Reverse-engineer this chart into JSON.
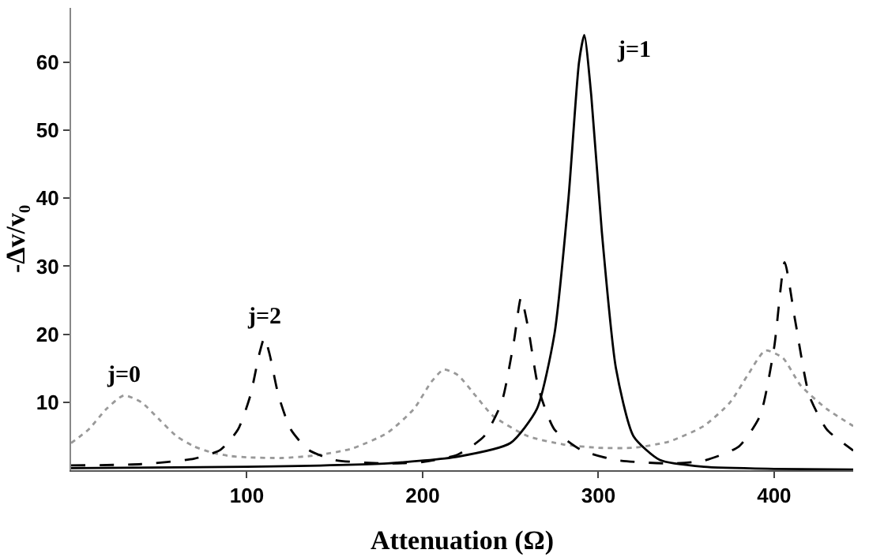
{
  "chart_data": {
    "type": "line",
    "xlabel": "Attenuation (Ω)",
    "ylabel": "-Δv/v₀",
    "xlim": [
      0,
      445
    ],
    "xticks": [
      100,
      200,
      300,
      400
    ],
    "ylim": [
      0,
      68
    ],
    "yticks": [
      10,
      20,
      30,
      40,
      50,
      60
    ],
    "legend": false,
    "marker": "none",
    "series": [
      {
        "name": "j=0",
        "color": "#999999",
        "line_style": "dotted",
        "x": [
          0,
          10,
          20,
          30,
          40,
          50,
          60,
          70,
          80,
          90,
          100,
          120,
          140,
          160,
          180,
          195,
          205,
          212,
          220,
          230,
          240,
          260,
          280,
          300,
          320,
          340,
          360,
          375,
          385,
          395,
          405,
          415,
          430,
          445
        ],
        "values": [
          4,
          6,
          9,
          11,
          10,
          7.5,
          5,
          3.5,
          2.6,
          2.1,
          1.9,
          1.8,
          2.2,
          3.2,
          5.5,
          9,
          13,
          14.8,
          14,
          11,
          8,
          5,
          3.8,
          3.3,
          3.3,
          4.2,
          6.5,
          10,
          14,
          17.6,
          16.5,
          12.5,
          9,
          6.5
        ]
      },
      {
        "name": "j=1",
        "color": "#000000",
        "line_style": "solid",
        "x": [
          0,
          100,
          180,
          220,
          250,
          265,
          275,
          283,
          289,
          292,
          296,
          302,
          310,
          320,
          335,
          360,
          400,
          445
        ],
        "values": [
          0.3,
          0.5,
          1,
          2,
          4,
          9,
          20,
          40,
          60,
          64,
          55,
          35,
          15,
          5,
          1.5,
          0.5,
          0.2,
          0.1
        ]
      },
      {
        "name": "j=2",
        "color": "#000000",
        "line_style": "dashed",
        "x": [
          0,
          40,
          70,
          85,
          95,
          102,
          107,
          110,
          113,
          118,
          125,
          135,
          150,
          180,
          200,
          220,
          235,
          245,
          252,
          256,
          260,
          266,
          275,
          290,
          310,
          340,
          360,
          380,
          392,
          400,
          406,
          412,
          420,
          430,
          445
        ],
        "values": [
          0.7,
          0.9,
          1.7,
          3,
          6,
          11,
          17,
          19.5,
          17,
          11,
          6,
          3,
          1.5,
          1,
          1.2,
          2.3,
          5,
          10,
          19,
          25.4,
          21,
          12,
          6,
          3,
          1.5,
          1,
          1.4,
          3.5,
          8,
          18,
          30.6,
          22,
          11,
          6,
          2.9
        ]
      }
    ]
  }
}
